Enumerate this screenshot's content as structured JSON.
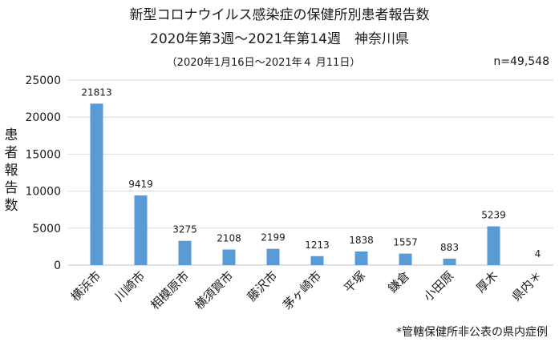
{
  "chart_data": {
    "type": "bar",
    "title": "新型コロナウイルス感染症の保健所別患者報告数",
    "subtitle": "2020年第3週～2021年第14週　神奈川県",
    "period": "（2020年1月16日～2021年４ 月11日）",
    "total_label": "n=49,548",
    "ylabel": "患者報告数",
    "xlabel": "",
    "ylim": [
      0,
      25000
    ],
    "yticks": [
      "0",
      "5000",
      "10000",
      "15000",
      "20000",
      "25000"
    ],
    "categories": [
      "横浜市",
      "川崎市",
      "相模原市",
      "横須賀市",
      "藤沢市",
      "茅ヶ崎市",
      "平塚",
      "鎌倉",
      "小田原",
      "厚木",
      "県内＊"
    ],
    "values": [
      21813,
      9419,
      3275,
      2108,
      2199,
      1213,
      1838,
      1557,
      883,
      5239,
      4
    ],
    "data_labels": [
      "21813",
      "9419",
      "3275",
      "2108",
      "2199",
      "1213",
      "1838",
      "1557",
      "883",
      "5239",
      "4"
    ],
    "bar_color": "#5b9bd5",
    "grid": true,
    "legend": "none",
    "footnote": "*管轄保健所非公表の県内症例"
  }
}
